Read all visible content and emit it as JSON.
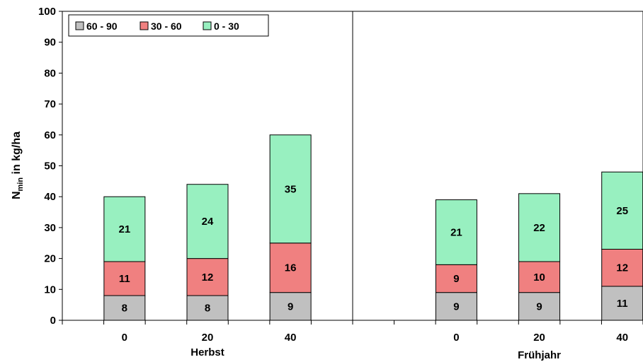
{
  "chart_data": {
    "type": "bar",
    "stacked": true,
    "title": "",
    "xlabel": "",
    "ylabel": "N",
    "ylabel_subscript": "min",
    "ylabel_suffix": " in kg/ha",
    "ylim": [
      0,
      100
    ],
    "yticks": [
      0,
      10,
      20,
      30,
      40,
      50,
      60,
      70,
      80,
      90,
      100
    ],
    "grid": false,
    "legend_position": "top-left",
    "categories": [
      "0",
      "20",
      "40",
      "0",
      "20",
      "40"
    ],
    "groups": [
      {
        "label": "Herbst",
        "categories": [
          "0",
          "20",
          "40"
        ]
      },
      {
        "label": "Frühjahr",
        "categories": [
          "0",
          "20",
          "40"
        ]
      }
    ],
    "series": [
      {
        "name": "60 - 90",
        "color": "#c0c0c0",
        "values": [
          8,
          8,
          9,
          9,
          9,
          11
        ],
        "labels": [
          "8",
          "8",
          "9",
          "9",
          "9",
          "11"
        ]
      },
      {
        "name": "30 - 60",
        "color": "#f08080",
        "values": [
          11,
          12,
          16,
          9,
          10,
          12
        ],
        "labels": [
          "11",
          "12",
          "16",
          "9",
          "10",
          "12"
        ]
      },
      {
        "name": "0 - 30",
        "color": "#98f0c0",
        "values": [
          21,
          24,
          35,
          21,
          22,
          25
        ],
        "labels": [
          "21",
          "24",
          "35",
          "21",
          "22",
          "25"
        ]
      }
    ]
  }
}
